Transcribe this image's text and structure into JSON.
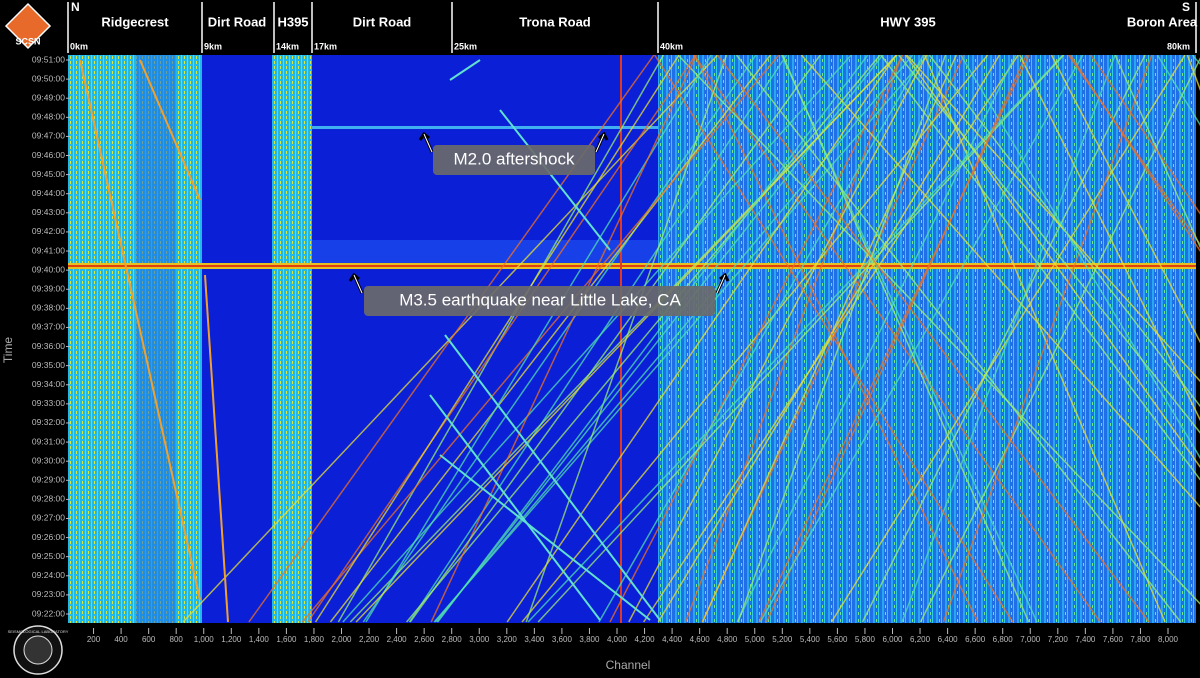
{
  "header": {
    "logo": "SCSN",
    "north": "N",
    "south": "S",
    "segments": [
      {
        "label": "Ridgecrest",
        "km": "0km"
      },
      {
        "label": "Dirt Road",
        "km": "9km"
      },
      {
        "label": "H395",
        "km": "14km"
      },
      {
        "label": "Dirt Road",
        "km": "17km"
      },
      {
        "label": "Trona Road",
        "km": "25km"
      },
      {
        "label": "HWY 395",
        "km": "40km"
      },
      {
        "label": "Boron Area",
        "km": "80km"
      }
    ]
  },
  "time_axis": {
    "title": "Time",
    "ticks": [
      "09:51:00",
      "09:50:00",
      "09:49:00",
      "09:48:00",
      "09:47:00",
      "09:46:00",
      "09:45:00",
      "09:44:00",
      "09:43:00",
      "09:42:00",
      "09:41:00",
      "09:40:00",
      "09:39:00",
      "09:38:00",
      "09:37:00",
      "09:36:00",
      "09:35:00",
      "09:34:00",
      "09:33:00",
      "09:32:00",
      "09:31:00",
      "09:30:00",
      "09:29:00",
      "09:28:00",
      "09:27:00",
      "09:26:00",
      "09:25:00",
      "09:24:00",
      "09:23:00",
      "09:22:00"
    ]
  },
  "channel_axis": {
    "title": "Channel",
    "ticks": [
      "200",
      "400",
      "600",
      "800",
      "1,000",
      "1,200",
      "1,400",
      "1,600",
      "1,800",
      "2,000",
      "2,200",
      "2,400",
      "2,600",
      "2,800",
      "3,000",
      "3,200",
      "3,400",
      "3,600",
      "3,800",
      "4,000",
      "4,200",
      "4,400",
      "4,600",
      "4,800",
      "5,000",
      "5,200",
      "5,400",
      "5,600",
      "5,800",
      "6,000",
      "6,200",
      "6,400",
      "6,600",
      "6,800",
      "7,000",
      "7,200",
      "7,400",
      "7,600",
      "7,800",
      "8,000"
    ]
  },
  "annotations": [
    "M2.0 aftershock",
    "M3.5 earthquake near Little Lake, CA"
  ],
  "seal": "SEISMOLOGICAL LABORATORY"
}
